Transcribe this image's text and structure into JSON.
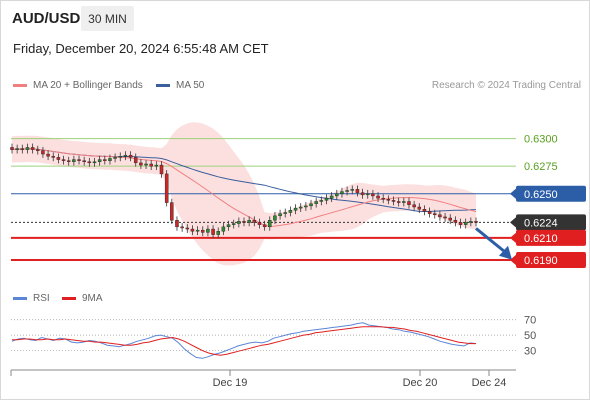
{
  "header": {
    "symbol": "AUD/USD",
    "interval": "30 MIN",
    "datetime": "Friday, December 20, 2024 6:55:48 AM CET",
    "credit": "Research © 2024 Trading Central"
  },
  "legend": {
    "ma20_label": "MA 20 + Bollinger Bands",
    "ma50_label": "MA 50",
    "rsi_label": "RSI",
    "ma9_label": "9MA"
  },
  "colors": {
    "candle_up": "#2e8b2e",
    "candle_down": "#c62828",
    "ma20": "#f08080",
    "bollinger_fill": "#fbd5d5",
    "ma50": "#3a5f9c",
    "level_green": "#9ed07a",
    "level_blue": "#2c5ea8",
    "level_red": "#e02020",
    "current_price": "#333333",
    "rsi": "#5b86d6",
    "rsi_ma": "#e02020",
    "arrow": "#2c5ea8"
  },
  "chart_data": [
    {
      "type": "candlestick",
      "title": "AUD/USD",
      "x_tick_labels": [
        "Dec 19",
        "Dec 20",
        "Dec 24"
      ],
      "ylim": [
        0.617,
        0.6335
      ],
      "indicators": [
        "MA 20 + Bollinger Bands",
        "MA 50"
      ],
      "close_prices": [
        0.629,
        0.6291,
        0.629,
        0.6292,
        0.629,
        0.6289,
        0.6286,
        0.6284,
        0.6283,
        0.6281,
        0.628,
        0.6279,
        0.6281,
        0.628,
        0.6279,
        0.6278,
        0.6279,
        0.6281,
        0.628,
        0.6282,
        0.6283,
        0.6284,
        0.6285,
        0.6283,
        0.6278,
        0.6276,
        0.6277,
        0.6275,
        0.6276,
        0.6268,
        0.6242,
        0.6226,
        0.622,
        0.6219,
        0.6218,
        0.6216,
        0.6217,
        0.6215,
        0.6218,
        0.6213,
        0.6216,
        0.622,
        0.6222,
        0.6223,
        0.6225,
        0.6224,
        0.6226,
        0.6224,
        0.6222,
        0.622,
        0.6226,
        0.623,
        0.6232,
        0.6233,
        0.6235,
        0.6237,
        0.6238,
        0.6239,
        0.6241,
        0.6243,
        0.6244,
        0.6246,
        0.6248,
        0.625,
        0.6252,
        0.6253,
        0.6254,
        0.6251,
        0.6249,
        0.625,
        0.6248,
        0.6246,
        0.6245,
        0.6244,
        0.6243,
        0.6242,
        0.6243,
        0.624,
        0.6238,
        0.6236,
        0.6234,
        0.6232,
        0.6231,
        0.6229,
        0.6228,
        0.6226,
        0.6224,
        0.6222,
        0.6224,
        0.6225,
        0.6224
      ],
      "levels": [
        {
          "label": "0.6300",
          "value": 0.63,
          "kind": "resistance"
        },
        {
          "label": "0.6275",
          "value": 0.6275,
          "kind": "resistance"
        },
        {
          "label": "0.6250",
          "value": 0.625,
          "kind": "pivot"
        },
        {
          "label": "0.6224",
          "value": 0.6224,
          "kind": "current"
        },
        {
          "label": "0.6210",
          "value": 0.621,
          "kind": "support"
        },
        {
          "label": "0.6190",
          "value": 0.619,
          "kind": "support"
        }
      ],
      "forecast_arrow": {
        "from": 0.6224,
        "to": 0.6192
      }
    },
    {
      "type": "line",
      "title": "RSI",
      "series": [
        {
          "name": "RSI",
          "values": [
            42,
            45,
            46,
            44,
            43,
            47,
            45,
            43,
            46,
            45,
            41,
            40,
            41,
            43,
            42,
            40,
            37,
            36,
            35,
            37,
            39,
            42,
            44,
            46,
            49,
            50,
            48,
            46,
            40,
            32,
            26,
            21,
            20,
            22,
            25,
            27,
            30,
            33,
            36,
            38,
            40,
            41,
            40,
            42,
            46,
            48,
            50,
            52,
            53,
            55,
            56,
            57,
            58,
            59,
            60,
            61,
            62,
            63,
            65,
            66,
            63,
            62,
            61,
            60,
            58,
            57,
            55,
            54,
            52,
            50,
            48,
            45,
            42,
            40,
            38,
            37,
            36,
            40,
            39
          ]
        },
        {
          "name": "9MA",
          "values": [
            44,
            44,
            45,
            45,
            44,
            44,
            45,
            44,
            44,
            45,
            44,
            43,
            42,
            42,
            41,
            41,
            40,
            39,
            38,
            37,
            37,
            38,
            40,
            41,
            43,
            45,
            46,
            47,
            45,
            42,
            38,
            34,
            30,
            27,
            25,
            24,
            25,
            27,
            29,
            31,
            33,
            35,
            37,
            38,
            40,
            42,
            44,
            46,
            48,
            50,
            51,
            53,
            54,
            55,
            56,
            57,
            58,
            59,
            60,
            61,
            61,
            61,
            61,
            60,
            60,
            59,
            58,
            56,
            55,
            53,
            51,
            49,
            47,
            45,
            43,
            41,
            40,
            39,
            39
          ]
        }
      ],
      "y_tick_labels": [
        "70",
        "50",
        "30"
      ],
      "ylim": [
        10,
        80
      ]
    }
  ]
}
